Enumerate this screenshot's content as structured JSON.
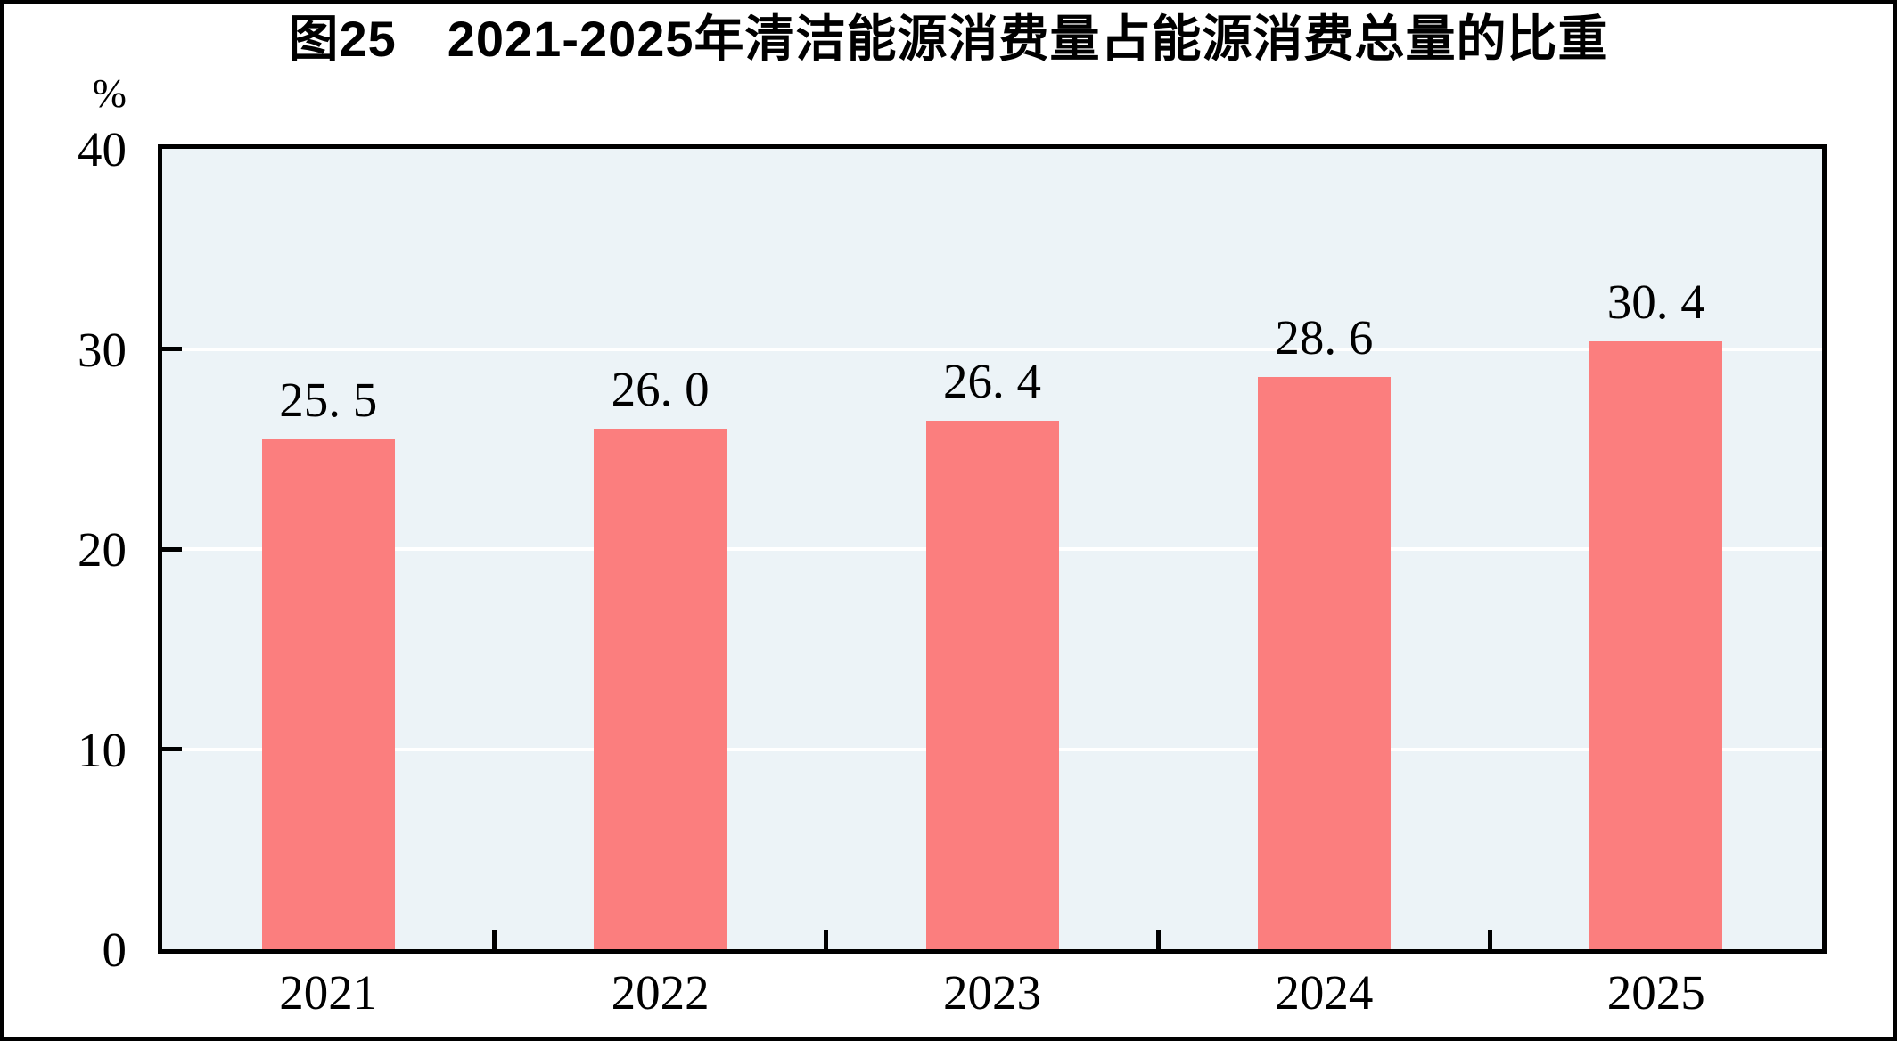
{
  "title": "图25　2021-2025年清洁能源消费量占能源消费总量的比重",
  "y_axis": {
    "unit": "%",
    "ticks": [
      {
        "label": "40",
        "value": 40
      },
      {
        "label": "30",
        "value": 30
      },
      {
        "label": "20",
        "value": 20
      },
      {
        "label": "10",
        "value": 10
      },
      {
        "label": "0",
        "value": 0
      }
    ]
  },
  "chart_data": {
    "type": "bar",
    "title": "图25　2021-2025年清洁能源消费量占能源消费总量的比重",
    "categories": [
      "2021",
      "2022",
      "2023",
      "2024",
      "2025"
    ],
    "values": [
      25.5,
      26.0,
      26.4,
      28.6,
      30.4
    ],
    "value_labels": [
      "25. 5",
      "26. 0",
      "26. 4",
      "28. 6",
      "30. 4"
    ],
    "xlabel": "",
    "ylabel": "%",
    "ylim": [
      0,
      40
    ],
    "yticks": [
      0,
      10,
      20,
      30,
      40
    ],
    "grid": "horizontal-white",
    "legend": "none",
    "colors": {
      "bar": "#FB7E7E",
      "plot_background": "#ECF3F7",
      "gridline": "#FFFFFF",
      "axis": "#000000",
      "text": "#000000"
    }
  }
}
